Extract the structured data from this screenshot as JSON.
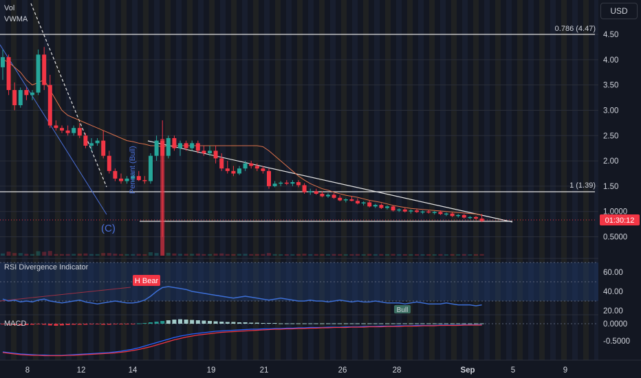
{
  "currency_button": "USD",
  "legend": {
    "vol": "Vol",
    "vwma": "VWMA"
  },
  "panes": {
    "rsi_title": "RSI Divergence Indicator",
    "macd_title": "MACD"
  },
  "badges": {
    "bear": "H Bear",
    "bull": "Bull",
    "pennant": "Pennant (Bull)",
    "wave": "(C)"
  },
  "fib": {
    "upper": "0.786 (4.47)",
    "lower": "1 (1.39)"
  },
  "price_tag": {
    "value": "01:30:12",
    "color": "#f23645"
  },
  "colors": {
    "up": "#26a69a",
    "down": "#f23645",
    "vwma": "#e0734c",
    "rsi": "#3d6fd6",
    "macd": "#2962ff",
    "signal": "#f23645"
  },
  "chart_data": [
    {
      "type": "candlestick",
      "title": "",
      "y_axis": {
        "ticks": [
          "4.50",
          "4.00",
          "3.50",
          "3.00",
          "2.50",
          "2.00",
          "1.50",
          "1.0000",
          "0.5000"
        ],
        "range": [
          0.2,
          5.0
        ],
        "scale": "linear"
      },
      "x_axis": {
        "ticks": [
          "8",
          "12",
          "14",
          "19",
          "21",
          "26",
          "28",
          "Sep",
          "5",
          "9"
        ]
      },
      "horizontal_levels": [
        {
          "label": "0.786 (4.47)",
          "value": 4.47
        },
        {
          "label": "1 (1.39)",
          "value": 1.39
        }
      ],
      "candles_ohlc": [
        [
          3.85,
          4.2,
          3.6,
          4.05
        ],
        [
          4.05,
          4.1,
          3.3,
          3.4
        ],
        [
          3.4,
          3.55,
          3.0,
          3.1
        ],
        [
          3.1,
          3.45,
          3.05,
          3.4
        ],
        [
          3.4,
          3.45,
          3.2,
          3.3
        ],
        [
          3.3,
          3.4,
          3.2,
          3.35
        ],
        [
          3.35,
          4.2,
          3.3,
          4.1
        ],
        [
          4.1,
          4.25,
          3.4,
          3.5
        ],
        [
          3.5,
          3.7,
          2.65,
          2.7
        ],
        [
          2.7,
          2.8,
          2.6,
          2.65
        ],
        [
          2.65,
          2.7,
          2.55,
          2.6
        ],
        [
          2.6,
          2.7,
          2.5,
          2.55
        ],
        [
          2.55,
          2.7,
          2.5,
          2.65
        ],
        [
          2.65,
          2.75,
          2.45,
          2.5
        ],
        [
          2.5,
          2.55,
          2.25,
          2.3
        ],
        [
          2.3,
          2.45,
          2.2,
          2.35
        ],
        [
          2.35,
          2.45,
          2.3,
          2.4
        ],
        [
          2.4,
          2.6,
          2.05,
          2.1
        ],
        [
          2.1,
          2.2,
          1.75,
          1.8
        ],
        [
          1.8,
          1.85,
          1.6,
          1.65
        ],
        [
          1.65,
          1.75,
          1.55,
          1.6
        ],
        [
          1.6,
          1.7,
          1.55,
          1.65
        ],
        [
          1.65,
          1.75,
          1.58,
          1.7
        ],
        [
          1.7,
          1.8,
          1.6,
          1.62
        ],
        [
          1.62,
          1.7,
          1.55,
          1.6
        ],
        [
          1.6,
          2.15,
          1.55,
          2.1
        ],
        [
          2.1,
          2.5,
          2.0,
          2.4
        ],
        [
          2.4,
          2.8,
          0.5,
          2.1
        ],
        [
          2.1,
          2.5,
          2.05,
          2.45
        ],
        [
          2.45,
          2.5,
          2.2,
          2.25
        ],
        [
          2.25,
          2.4,
          2.1,
          2.35
        ],
        [
          2.35,
          2.4,
          2.2,
          2.25
        ],
        [
          2.25,
          2.4,
          2.2,
          2.35
        ],
        [
          2.35,
          2.4,
          2.15,
          2.2
        ],
        [
          2.2,
          2.3,
          2.1,
          2.15
        ],
        [
          2.15,
          2.3,
          2.1,
          2.2
        ],
        [
          2.2,
          2.3,
          1.95,
          2.05
        ],
        [
          2.05,
          2.15,
          1.8,
          1.85
        ],
        [
          1.85,
          2.0,
          1.75,
          1.8
        ],
        [
          1.8,
          1.9,
          1.7,
          1.75
        ],
        [
          1.75,
          1.9,
          1.72,
          1.85
        ],
        [
          1.85,
          2.0,
          1.8,
          1.95
        ],
        [
          1.95,
          2.0,
          1.85,
          1.9
        ],
        [
          1.9,
          1.95,
          1.8,
          1.85
        ],
        [
          1.85,
          1.9,
          1.75,
          1.8
        ],
        [
          1.8,
          1.85,
          1.45,
          1.5
        ],
        [
          1.5,
          1.6,
          1.48,
          1.55
        ],
        [
          1.55,
          1.6,
          1.5,
          1.57
        ],
        [
          1.57,
          1.62,
          1.52,
          1.55
        ],
        [
          1.55,
          1.62,
          1.5,
          1.58
        ],
        [
          1.58,
          1.62,
          1.48,
          1.52
        ],
        [
          1.52,
          1.56,
          1.35,
          1.38
        ],
        [
          1.38,
          1.45,
          1.33,
          1.4
        ],
        [
          1.4,
          1.45,
          1.33,
          1.35
        ],
        [
          1.35,
          1.4,
          1.28,
          1.3
        ],
        [
          1.3,
          1.36,
          1.27,
          1.33
        ],
        [
          1.33,
          1.36,
          1.25,
          1.27
        ],
        [
          1.27,
          1.32,
          1.2,
          1.22
        ],
        [
          1.22,
          1.26,
          1.18,
          1.24
        ],
        [
          1.24,
          1.3,
          1.2,
          1.21
        ],
        [
          1.21,
          1.26,
          1.14,
          1.16
        ],
        [
          1.16,
          1.2,
          1.12,
          1.18
        ],
        [
          1.18,
          1.22,
          1.08,
          1.1
        ],
        [
          1.1,
          1.15,
          1.07,
          1.13
        ],
        [
          1.13,
          1.16,
          1.05,
          1.07
        ],
        [
          1.07,
          1.12,
          1.04,
          1.1
        ],
        [
          1.1,
          1.12,
          1.0,
          1.02
        ],
        [
          1.02,
          1.06,
          0.99,
          1.04
        ],
        [
          1.04,
          1.07,
          0.98,
          1.0
        ],
        [
          1.0,
          1.04,
          0.96,
          1.02
        ],
        [
          1.02,
          1.05,
          0.97,
          0.99
        ],
        [
          0.99,
          1.02,
          0.95,
          1.0
        ],
        [
          1.0,
          1.03,
          0.96,
          0.98
        ],
        [
          0.98,
          1.01,
          0.94,
          0.99
        ],
        [
          0.99,
          1.02,
          0.93,
          0.95
        ],
        [
          0.95,
          0.98,
          0.91,
          0.96
        ],
        [
          0.96,
          0.98,
          0.89,
          0.91
        ],
        [
          0.91,
          0.95,
          0.88,
          0.93
        ],
        [
          0.93,
          0.95,
          0.86,
          0.88
        ],
        [
          0.88,
          0.91,
          0.85,
          0.89
        ],
        [
          0.89,
          0.91,
          0.84,
          0.86
        ],
        [
          0.86,
          0.95,
          0.79,
          0.81
        ]
      ],
      "vwma": [
        4.0,
        3.95,
        3.85,
        3.75,
        3.6,
        3.5,
        3.55,
        3.6,
        3.4,
        3.2,
        3.0,
        2.9,
        2.85,
        2.8,
        2.75,
        2.7,
        2.65,
        2.6,
        2.55,
        2.5,
        2.45,
        2.4,
        2.38,
        2.35,
        2.33,
        2.3,
        2.3,
        2.28,
        2.3,
        2.3,
        2.3,
        2.3,
        2.3,
        2.3,
        2.3,
        2.3,
        2.3,
        2.3,
        2.3,
        2.3,
        2.3,
        2.3,
        2.3,
        2.3,
        2.28,
        2.2,
        2.1,
        2.0,
        1.9,
        1.8,
        1.7,
        1.62,
        1.55,
        1.5,
        1.45,
        1.42,
        1.38,
        1.35,
        1.32,
        1.3,
        1.28,
        1.25,
        1.22,
        1.2,
        1.18,
        1.15,
        1.12,
        1.1,
        1.08,
        1.06,
        1.05,
        1.04,
        1.03,
        1.02,
        1.01,
        1.0,
        0.99,
        0.98,
        0.97,
        0.96,
        0.95,
        0.93
      ],
      "last_price": 0.81
    },
    {
      "type": "line",
      "title": "RSI Divergence Indicator",
      "y_axis": {
        "ticks": [
          "60.00",
          "40.00",
          "20.00"
        ],
        "range": [
          18,
          68
        ]
      },
      "band": [
        30,
        70
      ],
      "midline": 50,
      "series": [
        {
          "values": [
            32,
            30,
            31,
            29,
            30,
            29,
            31,
            32,
            30,
            29,
            28,
            29,
            30,
            31,
            29,
            28,
            27,
            28,
            29,
            30,
            29,
            28,
            28,
            29,
            31,
            35,
            40,
            44,
            45,
            44,
            43,
            42,
            40,
            39,
            38,
            37,
            36,
            35,
            34,
            33,
            34,
            35,
            34,
            33,
            32,
            31,
            32,
            33,
            32,
            31,
            30,
            30,
            31,
            30,
            30,
            29,
            30,
            31,
            30,
            29,
            30,
            29,
            29,
            30,
            29,
            28,
            28,
            28,
            27,
            28,
            29,
            28,
            27,
            27,
            27,
            28,
            27,
            26,
            26,
            26,
            25,
            26
          ]
        }
      ]
    },
    {
      "type": "histogram",
      "title": "MACD",
      "y_axis": {
        "ticks": [
          "0.0000",
          "-0.5000"
        ],
        "range": [
          -0.95,
          0.25
        ]
      },
      "series": [
        {
          "values": [
            -0.02,
            -0.03,
            -0.04,
            -0.05,
            -0.04,
            -0.03,
            -0.02,
            -0.03,
            -0.05,
            -0.06,
            -0.05,
            -0.04,
            -0.03,
            -0.03,
            -0.03,
            -0.02,
            -0.02,
            -0.03,
            -0.03,
            -0.02,
            -0.02,
            -0.01,
            -0.01,
            0.01,
            0.02,
            0.04,
            0.06,
            0.08,
            0.1,
            0.12,
            0.13,
            0.12,
            0.11,
            0.1,
            0.09,
            0.08,
            0.07,
            0.06,
            0.05,
            0.05,
            0.04,
            0.04,
            0.03,
            0.03,
            0.02,
            0.02,
            0.02,
            0.01,
            0.01,
            0.01,
            0.01,
            0.01,
            0.01,
            0.01,
            0.01,
            0.01,
            0.01,
            0.01,
            0.01,
            0.01,
            0.01,
            0.01,
            0.01,
            0.01,
            0.01,
            0.01,
            0.01,
            0.01,
            0.01,
            0.01,
            0.01,
            0.01,
            0.01,
            0.01,
            0.01,
            0.01,
            0.01,
            0.01,
            0.01,
            0.01,
            0.01,
            0.01
          ]
        },
        {
          "values": [
            -0.82,
            -0.84,
            -0.86,
            -0.88,
            -0.89,
            -0.9,
            -0.91,
            -0.91,
            -0.92,
            -0.92,
            -0.92,
            -0.91,
            -0.9,
            -0.89,
            -0.88,
            -0.87,
            -0.86,
            -0.85,
            -0.84,
            -0.82,
            -0.8,
            -0.77,
            -0.74,
            -0.7,
            -0.65,
            -0.6,
            -0.55,
            -0.5,
            -0.45,
            -0.4,
            -0.36,
            -0.33,
            -0.3,
            -0.28,
            -0.26,
            -0.24,
            -0.22,
            -0.21,
            -0.2,
            -0.19,
            -0.18,
            -0.17,
            -0.16,
            -0.16,
            -0.15,
            -0.15,
            -0.14,
            -0.14,
            -0.13,
            -0.13,
            -0.12,
            -0.12,
            -0.11,
            -0.11,
            -0.11,
            -0.1,
            -0.1,
            -0.1,
            -0.09,
            -0.09,
            -0.09,
            -0.08,
            -0.08,
            -0.08,
            -0.07,
            -0.07,
            -0.07,
            -0.06,
            -0.06,
            -0.06,
            -0.05,
            -0.05,
            -0.05,
            -0.05,
            -0.04,
            -0.04,
            -0.04,
            -0.04,
            -0.03,
            -0.03,
            -0.03,
            -0.03
          ]
        },
        {
          "values": [
            -0.84,
            -0.86,
            -0.88,
            -0.9,
            -0.91,
            -0.92,
            -0.92,
            -0.93,
            -0.93,
            -0.93,
            -0.93,
            -0.92,
            -0.92,
            -0.91,
            -0.9,
            -0.89,
            -0.88,
            -0.87,
            -0.86,
            -0.85,
            -0.83,
            -0.81,
            -0.78,
            -0.75,
            -0.71,
            -0.67,
            -0.62,
            -0.57,
            -0.52,
            -0.47,
            -0.43,
            -0.39,
            -0.36,
            -0.33,
            -0.31,
            -0.29,
            -0.27,
            -0.25,
            -0.24,
            -0.23,
            -0.22,
            -0.21,
            -0.2,
            -0.19,
            -0.18,
            -0.17,
            -0.16,
            -0.16,
            -0.15,
            -0.15,
            -0.14,
            -0.14,
            -0.13,
            -0.13,
            -0.12,
            -0.12,
            -0.11,
            -0.11,
            -0.11,
            -0.1,
            -0.1,
            -0.1,
            -0.09,
            -0.09,
            -0.09,
            -0.08,
            -0.08,
            -0.08,
            -0.07,
            -0.07,
            -0.07,
            -0.06,
            -0.06,
            -0.06,
            -0.05,
            -0.05,
            -0.05,
            -0.05,
            -0.04,
            -0.04,
            -0.04,
            -0.04
          ]
        }
      ]
    }
  ]
}
